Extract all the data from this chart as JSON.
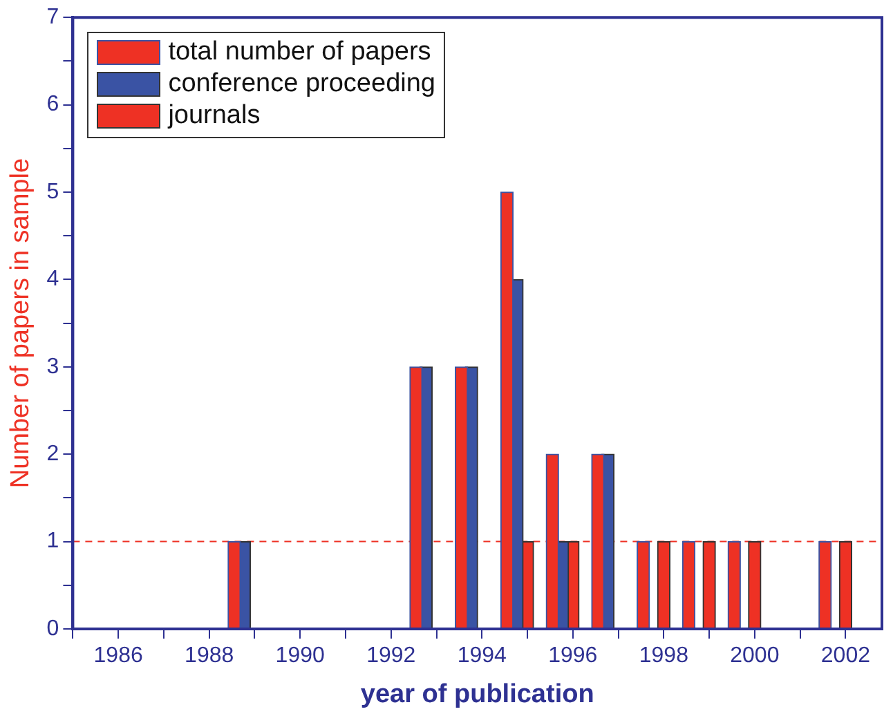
{
  "chart_data": {
    "type": "bar",
    "xlabel": "year of publication",
    "ylabel": "Number of papers in sample",
    "series": [
      {
        "name": "total number of papers",
        "color": "#ee3124",
        "x": [
          1988.55,
          1992.55,
          1993.55,
          1994.55,
          1995.55,
          1996.55,
          1997.55,
          1998.55,
          1999.55,
          2001.55
        ],
        "values": [
          1,
          3,
          3,
          5,
          2,
          2,
          1,
          1,
          1,
          1
        ]
      },
      {
        "name": "conference proceeding",
        "color": "#3a53a4",
        "x": [
          1988.77,
          1992.77,
          1993.77,
          1994.77,
          1995.77,
          1996.77
        ],
        "values": [
          1,
          3,
          3,
          4,
          1,
          2
        ]
      },
      {
        "name": "journals",
        "color": "#ee3124",
        "x": [
          1995,
          1996,
          1998,
          1999,
          2000,
          2002
        ],
        "values": [
          1,
          1,
          1,
          1,
          1,
          1
        ]
      }
    ],
    "xlim": [
      1985,
      2002.8
    ],
    "xticks": [
      {
        "value": 1985,
        "label": null
      },
      1986,
      {
        "value": 1987,
        "label": null
      },
      1988,
      {
        "value": 1989,
        "label": null
      },
      1990,
      {
        "value": 1991,
        "label": null
      },
      1992,
      {
        "value": 1993,
        "label": null
      },
      1994,
      {
        "value": 1995,
        "label": null
      },
      1996,
      {
        "value": 1997,
        "label": null
      },
      1998,
      {
        "value": 1999,
        "label": null
      },
      2000,
      {
        "value": 2001,
        "label": null
      },
      2002
    ],
    "ylim": [
      0,
      7
    ],
    "yticks": [
      0,
      {
        "value": 0.5,
        "label": null
      },
      1,
      {
        "value": 1.5,
        "label": null
      },
      2,
      {
        "value": 2.5,
        "label": null
      },
      3,
      {
        "value": 3.5,
        "label": null
      },
      4,
      {
        "value": 4.5,
        "label": null
      },
      5,
      {
        "value": 5.5,
        "label": null
      },
      6,
      {
        "value": 6.5,
        "label": null
      },
      7
    ],
    "ref_lines": [
      {
        "axis": "y",
        "value": 1,
        "color": "#ee3124",
        "line_style": "dashed"
      }
    ],
    "legend": "top left",
    "grid": false
  }
}
